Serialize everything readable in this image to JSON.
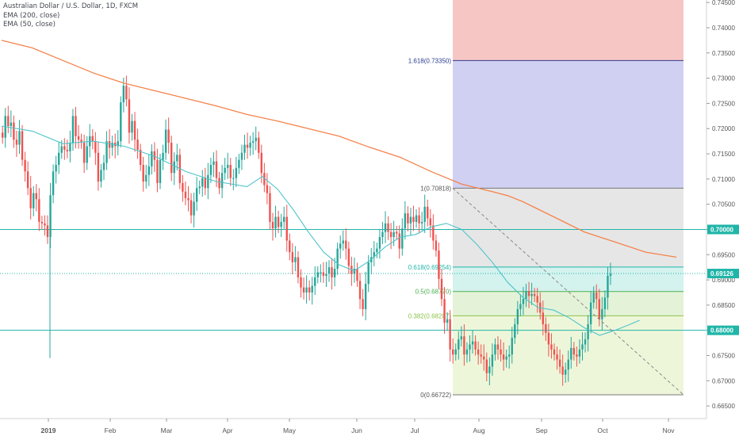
{
  "legend": {
    "title": "Australian Dollar / U.S. Dollar, 1D, FXCM",
    "ema200": "EMA (200, close)",
    "ema50": "EMA (50, close)"
  },
  "colors": {
    "up": "#26a69a",
    "down": "#ef5350",
    "ema200": "#f4834b",
    "ema50": "#4fc3c9",
    "hline": "#1fb5a8",
    "fib_red": "#f5c6c3",
    "fib_blue": "#cfd0f2",
    "fib_grey": "#e6e6e6",
    "fib_cyan": "#d4f2ee",
    "fib_green": "#e4f3d8",
    "fib_lightgreen": "#eef6da",
    "axis_bg": "#ffffff",
    "price_tag": "#1fb5a8"
  },
  "chart_data": {
    "type": "candlestick",
    "title": "Australian Dollar / U.S. Dollar, 1D, FXCM",
    "x_ticks": [
      "2019",
      "Feb",
      "Mar",
      "Apr",
      "May",
      "Jun",
      "Jul",
      "Aug",
      "Sep",
      "Oct",
      "Nov"
    ],
    "ylim": [
      0.6625,
      0.7455
    ],
    "y_ticks": [
      "0.74500",
      "0.74000",
      "0.73500",
      "0.73000",
      "0.72500",
      "0.72000",
      "0.71500",
      "0.71000",
      "0.70500",
      "0.70000",
      "0.69500",
      "0.69000",
      "0.68500",
      "0.68000",
      "0.67500",
      "0.67000",
      "0.66500"
    ],
    "horizontal_lines": [
      {
        "value": 0.7,
        "label": "0.70000"
      },
      {
        "value": 0.68,
        "label": "0.68000"
      },
      {
        "value": 0.69126,
        "label": "0.69126"
      }
    ],
    "last_price": "0.69126",
    "fib_levels": [
      {
        "ratio": "1.618",
        "value": 0.7335,
        "label": "1.618(0.73350)"
      },
      {
        "ratio": "1",
        "value": 0.70818,
        "label": "1(0.70818)"
      },
      {
        "ratio": "0.618",
        "value": 0.69254,
        "label": "0.618(0.69254)"
      },
      {
        "ratio": "0.5",
        "value": 0.6877,
        "label": "0.5(0.68770)"
      },
      {
        "ratio": "0.382",
        "value": 0.68287,
        "label": "0.382(0.68287)"
      },
      {
        "ratio": "0",
        "value": 0.66722,
        "label": "0(0.66722)"
      }
    ],
    "ema200": [
      [
        0,
        0.7375
      ],
      [
        10,
        0.736
      ],
      [
        20,
        0.7335
      ],
      [
        30,
        0.731
      ],
      [
        40,
        0.729
      ],
      [
        50,
        0.7275
      ],
      [
        60,
        0.726
      ],
      [
        70,
        0.7245
      ],
      [
        80,
        0.7228
      ],
      [
        90,
        0.7215
      ],
      [
        100,
        0.72
      ],
      [
        110,
        0.7185
      ],
      [
        120,
        0.7163
      ],
      [
        130,
        0.7143
      ],
      [
        140,
        0.7115
      ],
      [
        150,
        0.709
      ],
      [
        160,
        0.7075
      ],
      [
        165,
        0.7067
      ],
      [
        170,
        0.7055
      ],
      [
        175,
        0.704
      ],
      [
        180,
        0.7025
      ],
      [
        190,
        0.6995
      ],
      [
        200,
        0.6975
      ],
      [
        210,
        0.6955
      ],
      [
        220,
        0.6945
      ]
    ],
    "ema50": [
      [
        0,
        0.7205
      ],
      [
        10,
        0.7195
      ],
      [
        20,
        0.717
      ],
      [
        30,
        0.7175
      ],
      [
        40,
        0.7165
      ],
      [
        50,
        0.7145
      ],
      [
        60,
        0.7115
      ],
      [
        70,
        0.7095
      ],
      [
        80,
        0.7085
      ],
      [
        85,
        0.7105
      ],
      [
        90,
        0.708
      ],
      [
        95,
        0.704
      ],
      [
        100,
        0.6995
      ],
      [
        105,
        0.6955
      ],
      [
        110,
        0.693
      ],
      [
        115,
        0.6918
      ],
      [
        120,
        0.6938
      ],
      [
        125,
        0.6965
      ],
      [
        130,
        0.6985
      ],
      [
        135,
        0.699
      ],
      [
        140,
        0.7005
      ],
      [
        145,
        0.7012
      ],
      [
        150,
        0.7
      ],
      [
        155,
        0.697
      ],
      [
        160,
        0.6935
      ],
      [
        165,
        0.6895
      ],
      [
        170,
        0.6865
      ],
      [
        175,
        0.6845
      ],
      [
        180,
        0.684
      ],
      [
        185,
        0.6825
      ],
      [
        190,
        0.6805
      ],
      [
        195,
        0.679
      ],
      [
        200,
        0.68
      ],
      [
        205,
        0.6812
      ],
      [
        208,
        0.682
      ]
    ],
    "candles_close": [
      0.7182,
      0.7225,
      0.7205,
      0.7212,
      0.7178,
      0.7168,
      0.7195,
      0.7138,
      0.7115,
      0.7082,
      0.7042,
      0.7072,
      0.706,
      0.7015,
      0.7012,
      0.7008,
      0.6985,
      0.7068,
      0.7115,
      0.7128,
      0.7152,
      0.7165,
      0.7158,
      0.7155,
      0.7172,
      0.7225,
      0.7185,
      0.7178,
      0.7172,
      0.7132,
      0.7165,
      0.7185,
      0.7175,
      0.7152,
      0.7095,
      0.7118,
      0.7132,
      0.7175,
      0.7162,
      0.7172,
      0.7165,
      0.7175,
      0.7252,
      0.7285,
      0.7258,
      0.7192,
      0.7215,
      0.7178,
      0.7158,
      0.7128,
      0.7095,
      0.7108,
      0.7125,
      0.7155,
      0.7138,
      0.7092,
      0.7138,
      0.7152,
      0.7198,
      0.7172,
      0.7112,
      0.7135,
      0.7148,
      0.7092,
      0.7075,
      0.7062,
      0.7058,
      0.7028,
      0.7055,
      0.7082,
      0.7085,
      0.7102,
      0.7082,
      0.7108,
      0.7128,
      0.7135,
      0.7102,
      0.7082,
      0.7112,
      0.7122,
      0.7128,
      0.7102,
      0.7102,
      0.7122,
      0.7138,
      0.7152,
      0.7168,
      0.7162,
      0.7172,
      0.7175,
      0.7182,
      0.7152,
      0.7112,
      0.7088,
      0.7072,
      0.7015,
      0.7002,
      0.7025,
      0.7005,
      0.7015,
      0.7025,
      0.6978,
      0.6955,
      0.6935,
      0.6945,
      0.6905,
      0.6885,
      0.6875,
      0.6885,
      0.6875,
      0.6888,
      0.6905,
      0.6915,
      0.6915,
      0.6908,
      0.6912,
      0.6925,
      0.6905,
      0.6922,
      0.6962,
      0.6972,
      0.6978,
      0.6962,
      0.6928,
      0.6912,
      0.6922,
      0.6898,
      0.6862,
      0.6842,
      0.6892,
      0.6935,
      0.6945,
      0.6955,
      0.6962,
      0.6985,
      0.6995,
      0.7012,
      0.6995,
      0.6985,
      0.6995,
      0.6992,
      0.6962,
      0.7002,
      0.7032,
      0.7012,
      0.7025,
      0.7015,
      0.7028,
      0.7012,
      0.7015,
      0.7045,
      0.7022,
      0.7008,
      0.6978,
      0.6958,
      0.6902,
      0.6862,
      0.6815,
      0.6822,
      0.6762,
      0.6752,
      0.6762,
      0.6782,
      0.6788,
      0.6752,
      0.6762,
      0.6772,
      0.6778,
      0.6762,
      0.6752,
      0.6748,
      0.6742,
      0.6715,
      0.6728,
      0.6752,
      0.6772,
      0.6762,
      0.6752,
      0.6742,
      0.6748,
      0.6752,
      0.6785,
      0.6812,
      0.6842,
      0.6852,
      0.6862,
      0.6878,
      0.6868,
      0.6872,
      0.6868,
      0.6855,
      0.6835,
      0.6812,
      0.6795,
      0.6772,
      0.6762,
      0.6752,
      0.6742,
      0.6728,
      0.6712,
      0.6722,
      0.6742,
      0.6765,
      0.6752,
      0.6748,
      0.6762,
      0.6772,
      0.6782,
      0.6812,
      0.6855,
      0.6875,
      0.6862,
      0.6822,
      0.6842,
      0.6865,
      0.6908,
      0.6912
    ]
  }
}
